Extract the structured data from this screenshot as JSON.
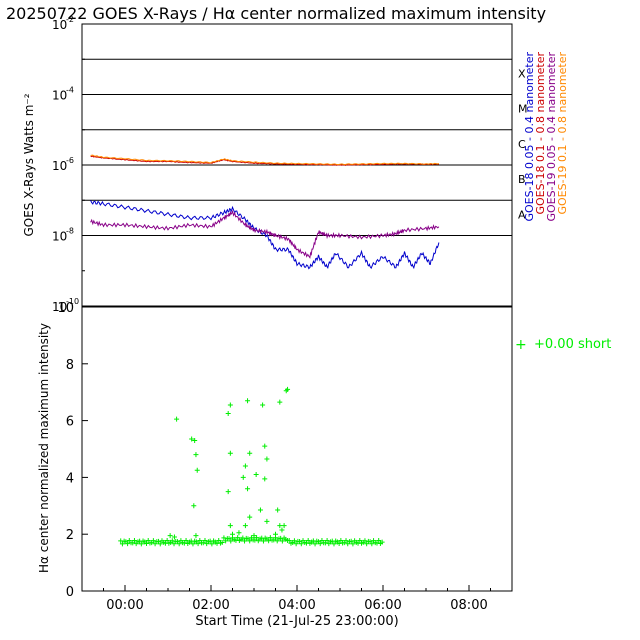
{
  "title": "20250722 GOES X-Rays / Hα center normalized maximum intensity",
  "chart_data": [
    {
      "type": "line",
      "panel": "top",
      "ylabel": "GOES X-Rays Watts m⁻²",
      "yscale": "log",
      "ylim": [
        1e-10,
        0.01
      ],
      "y_tick_labels": [
        {
          "exp": -2,
          "base": "10",
          "power": "-2"
        },
        {
          "exp": -4,
          "base": "10",
          "power": "-4"
        },
        {
          "exp": -6,
          "base": "10",
          "power": "-6"
        },
        {
          "exp": -8,
          "base": "10",
          "power": "-8"
        },
        {
          "exp": -10,
          "base": "10",
          "power": "-10"
        }
      ],
      "flare_class_lines": [
        {
          "label": "X",
          "exp": -3
        },
        {
          "label": "M",
          "exp": -4
        },
        {
          "label": "C",
          "exp": -5
        },
        {
          "label": "B",
          "exp": -6
        },
        {
          "label": "A",
          "exp": -7
        },
        {
          "label": "",
          "exp": -8
        }
      ],
      "xlim": [
        -1.0,
        9.0
      ],
      "series": [
        {
          "name": "GOES-18 0.05 - 0.4 nanometer",
          "color": "#0000cc",
          "x": [
            -0.8,
            -0.5,
            0,
            0.5,
            1,
            1.5,
            2,
            2.3,
            2.5,
            2.8,
            3,
            3.3,
            3.5,
            3.8,
            4.0,
            4.3,
            4.5,
            4.7,
            4.9,
            5.2,
            5.5,
            5.7,
            6,
            6.3,
            6.5,
            6.7,
            6.9,
            7.1,
            7.3
          ],
          "y": [
            -7.05,
            -7.1,
            -7.2,
            -7.3,
            -7.4,
            -7.5,
            -7.5,
            -7.35,
            -7.25,
            -7.55,
            -7.8,
            -8.0,
            -8.4,
            -8.4,
            -8.8,
            -8.9,
            -8.6,
            -8.9,
            -8.5,
            -8.9,
            -8.5,
            -8.9,
            -8.6,
            -8.9,
            -8.5,
            -8.9,
            -8.5,
            -8.8,
            -8.2
          ]
        },
        {
          "name": "GOES-18 0.1 - 0.8 nanometer",
          "color": "#cc0000",
          "x": [
            -0.8,
            -0.5,
            0,
            0.5,
            1,
            1.5,
            2,
            2.3,
            2.5,
            3,
            3.5,
            4,
            4.5,
            5,
            5.5,
            6,
            6.5,
            7,
            7.3
          ],
          "y": [
            -5.75,
            -5.8,
            -5.85,
            -5.9,
            -5.9,
            -5.93,
            -5.95,
            -5.85,
            -5.9,
            -5.95,
            -5.97,
            -5.98,
            -5.99,
            -6.0,
            -5.99,
            -5.98,
            -5.97,
            -5.98,
            -5.97
          ]
        },
        {
          "name": "GOES-19 0.05 - 0.4 nanometer",
          "color": "#880088",
          "x": [
            -0.8,
            -0.5,
            0,
            0.5,
            1,
            1.5,
            2,
            2.3,
            2.5,
            2.8,
            3,
            3.3,
            3.5,
            3.8,
            4.0,
            4.3,
            4.5,
            4.7,
            5,
            5.5,
            6,
            6.3,
            6.5,
            7,
            7.3
          ],
          "y": [
            -7.6,
            -7.7,
            -7.7,
            -7.75,
            -7.8,
            -7.7,
            -7.75,
            -7.5,
            -7.35,
            -7.7,
            -7.85,
            -7.9,
            -8.0,
            -8.1,
            -8.4,
            -8.6,
            -7.9,
            -8.0,
            -8.0,
            -8.05,
            -8.0,
            -7.95,
            -7.85,
            -7.8,
            -7.75
          ]
        },
        {
          "name": "GOES-19 0.1 - 0.8 nanometer",
          "color": "#ff8800",
          "x": [
            -0.8,
            -0.5,
            0,
            0.5,
            1,
            1.5,
            2,
            2.3,
            2.5,
            3,
            3.5,
            4,
            4.5,
            5,
            5.5,
            6,
            6.5,
            7,
            7.3
          ],
          "y": [
            -5.72,
            -5.78,
            -5.82,
            -5.87,
            -5.88,
            -5.9,
            -5.93,
            -5.83,
            -5.88,
            -5.92,
            -5.95,
            -5.96,
            -5.97,
            -5.98,
            -5.97,
            -5.96,
            -5.96,
            -5.97,
            -5.96
          ]
        }
      ]
    },
    {
      "type": "scatter",
      "panel": "bottom",
      "ylabel": "Hα center normalized maximum intensity",
      "xlabel": "Start Time (21-Jul-25 23:00:00)",
      "ylim": [
        0,
        10
      ],
      "yticks": [
        0,
        2,
        4,
        6,
        8,
        10
      ],
      "xlim": [
        -1.0,
        9.0
      ],
      "xticks": [
        0,
        2,
        4,
        6,
        8
      ],
      "xtick_labels": [
        "00:00",
        "02:00",
        "04:00",
        "06:00",
        "08:00"
      ],
      "legend": {
        "symbol": "+",
        "text": "+0.00 short",
        "color": "#00ee00"
      },
      "baseline": {
        "start": -0.1,
        "end": 6.0,
        "step": 0.04,
        "level": 1.72,
        "color": "#00ee00"
      },
      "outliers": [
        {
          "x": 1.05,
          "y": 1.95
        },
        {
          "x": 1.2,
          "y": 6.05
        },
        {
          "x": 1.55,
          "y": 5.35
        },
        {
          "x": 1.62,
          "y": 5.3
        },
        {
          "x": 1.65,
          "y": 4.8
        },
        {
          "x": 1.68,
          "y": 4.25
        },
        {
          "x": 1.6,
          "y": 3.0
        },
        {
          "x": 1.65,
          "y": 1.95
        },
        {
          "x": 2.45,
          "y": 6.55
        },
        {
          "x": 2.4,
          "y": 6.25
        },
        {
          "x": 2.45,
          "y": 4.85
        },
        {
          "x": 2.4,
          "y": 3.5
        },
        {
          "x": 2.45,
          "y": 2.3
        },
        {
          "x": 2.85,
          "y": 6.7
        },
        {
          "x": 2.8,
          "y": 4.4
        },
        {
          "x": 2.9,
          "y": 4.85
        },
        {
          "x": 2.75,
          "y": 4.0
        },
        {
          "x": 2.85,
          "y": 3.6
        },
        {
          "x": 2.9,
          "y": 2.6
        },
        {
          "x": 2.8,
          "y": 2.3
        },
        {
          "x": 3.05,
          "y": 4.1
        },
        {
          "x": 3.2,
          "y": 6.55
        },
        {
          "x": 3.25,
          "y": 5.1
        },
        {
          "x": 3.3,
          "y": 4.65
        },
        {
          "x": 3.25,
          "y": 3.95
        },
        {
          "x": 3.15,
          "y": 2.85
        },
        {
          "x": 3.3,
          "y": 2.45
        },
        {
          "x": 3.6,
          "y": 6.65
        },
        {
          "x": 3.75,
          "y": 7.05
        },
        {
          "x": 3.78,
          "y": 7.1
        },
        {
          "x": 3.55,
          "y": 2.85
        },
        {
          "x": 3.6,
          "y": 2.3
        },
        {
          "x": 3.65,
          "y": 2.15
        },
        {
          "x": 3.7,
          "y": 2.3
        },
        {
          "x": 3.5,
          "y": 2.0
        },
        {
          "x": 2.5,
          "y": 2.0
        },
        {
          "x": 2.65,
          "y": 2.05
        },
        {
          "x": 1.15,
          "y": 1.9
        },
        {
          "x": 3.0,
          "y": 1.95
        }
      ]
    }
  ]
}
